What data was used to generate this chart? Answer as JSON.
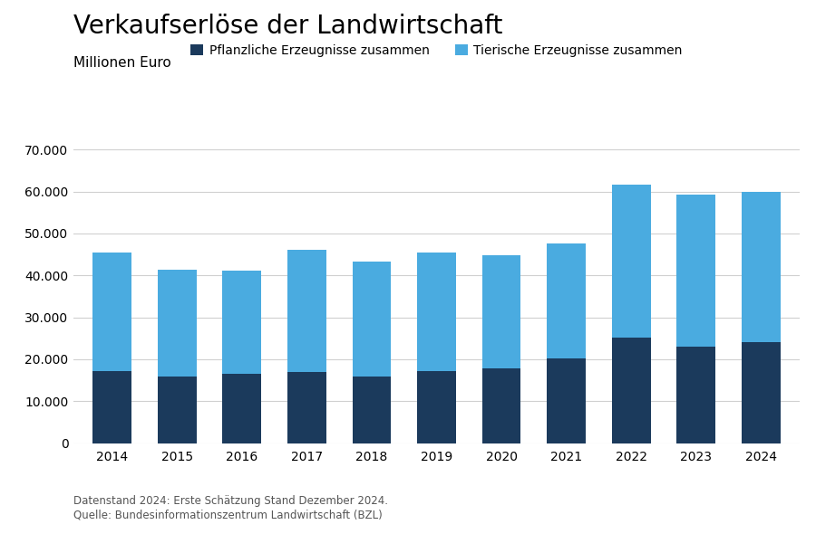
{
  "title": "Verkaufserlöse der Landwirtschaft",
  "subtitle": "Millionen Euro",
  "years": [
    2014,
    2015,
    2016,
    2017,
    2018,
    2019,
    2020,
    2021,
    2022,
    2023,
    2024
  ],
  "pflanzlich": [
    17200,
    16000,
    16500,
    17000,
    15800,
    17200,
    17800,
    20200,
    25200,
    23000,
    24000
  ],
  "tierisch": [
    28200,
    25300,
    24600,
    29100,
    27400,
    28300,
    27000,
    27400,
    36500,
    36200,
    36000
  ],
  "color_pflanzlich": "#1b3a5c",
  "color_tierisch": "#4aabe0",
  "legend_pflanzlich": "Pflanzliche Erzeugnisse zusammen",
  "legend_tierisch": "Tierische Erzeugnisse zusammen",
  "ylim": [
    0,
    70000
  ],
  "yticks": [
    0,
    10000,
    20000,
    30000,
    40000,
    50000,
    60000,
    70000
  ],
  "footnote_line1": "Datenstand 2024: Erste Schätzung Stand Dezember 2024.",
  "footnote_line2": "Quelle: Bundesinformationszentrum Landwirtschaft (BZL)",
  "background_color": "#ffffff",
  "grid_color": "#d0d0d0",
  "title_fontsize": 20,
  "subtitle_fontsize": 11,
  "legend_fontsize": 10,
  "tick_fontsize": 10,
  "footnote_fontsize": 8.5,
  "bar_width": 0.6
}
